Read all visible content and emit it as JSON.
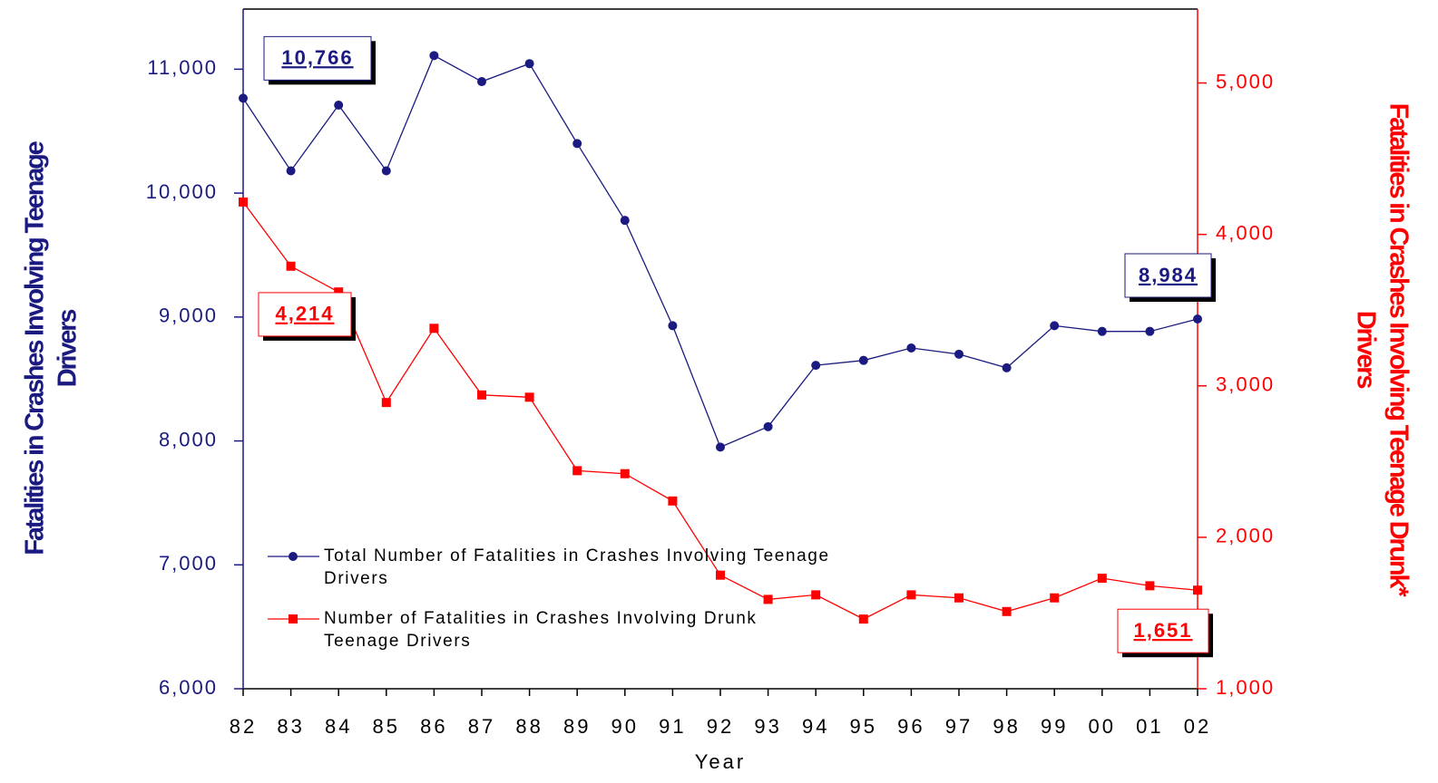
{
  "chart_data": {
    "type": "line",
    "categories": [
      "82",
      "83",
      "84",
      "85",
      "86",
      "87",
      "88",
      "89",
      "90",
      "91",
      "92",
      "93",
      "94",
      "95",
      "96",
      "97",
      "98",
      "99",
      "00",
      "01",
      "02"
    ],
    "xlabel": "Year",
    "ylabel": [
      "Fatalities in Crashes Involving Teenage",
      "Drivers"
    ],
    "y2label": [
      "Fatalities in Crashes Involving Teenage Drunk*",
      "Drivers"
    ],
    "ylim": [
      6000,
      11500
    ],
    "yticks": [
      {
        "value": 6000,
        "label": "6,000"
      },
      {
        "value": 7000,
        "label": "7,000"
      },
      {
        "value": 8000,
        "label": "8,000"
      },
      {
        "value": 9000,
        "label": "9,000"
      },
      {
        "value": 10000,
        "label": "10,000"
      },
      {
        "value": 11000,
        "label": "11,000"
      }
    ],
    "y2lim": [
      1000,
      5500
    ],
    "y2ticks": [
      {
        "value": 1000,
        "label": "1,000"
      },
      {
        "value": 2000,
        "label": "2,000"
      },
      {
        "value": 3000,
        "label": "3,000"
      },
      {
        "value": 4000,
        "label": "4,000"
      },
      {
        "value": 5000,
        "label": "5,000"
      }
    ],
    "series": [
      {
        "name": "Total Number of Fatalities in Crashes Involving Teenage Drivers",
        "color": "#1a1a80",
        "marker": "circle",
        "axis": "y",
        "values": [
          10766,
          10180,
          10710,
          10180,
          11110,
          10900,
          11045,
          10400,
          9780,
          8930,
          7950,
          8115,
          8610,
          8650,
          8750,
          8700,
          8590,
          8930,
          8884,
          8884,
          8984
        ],
        "value_labels": [
          "10,766",
          null,
          null,
          null,
          null,
          null,
          null,
          null,
          null,
          null,
          null,
          null,
          null,
          null,
          null,
          null,
          null,
          null,
          null,
          null,
          "8,984"
        ]
      },
      {
        "name": "Number of Fatalities in Crashes Involving Drunk Teenage Drivers",
        "color": "#ff0000",
        "marker": "square",
        "axis": "y2",
        "values": [
          4214,
          3790,
          3620,
          2890,
          3380,
          2940,
          2925,
          2440,
          2420,
          2240,
          1750,
          1590,
          1620,
          1460,
          1620,
          1600,
          1510,
          1600,
          1730,
          1680,
          1651
        ],
        "value_labels": [
          "4,214",
          null,
          null,
          null,
          null,
          null,
          null,
          null,
          null,
          null,
          null,
          null,
          null,
          null,
          null,
          null,
          null,
          null,
          null,
          null,
          "1,651"
        ]
      }
    ]
  }
}
